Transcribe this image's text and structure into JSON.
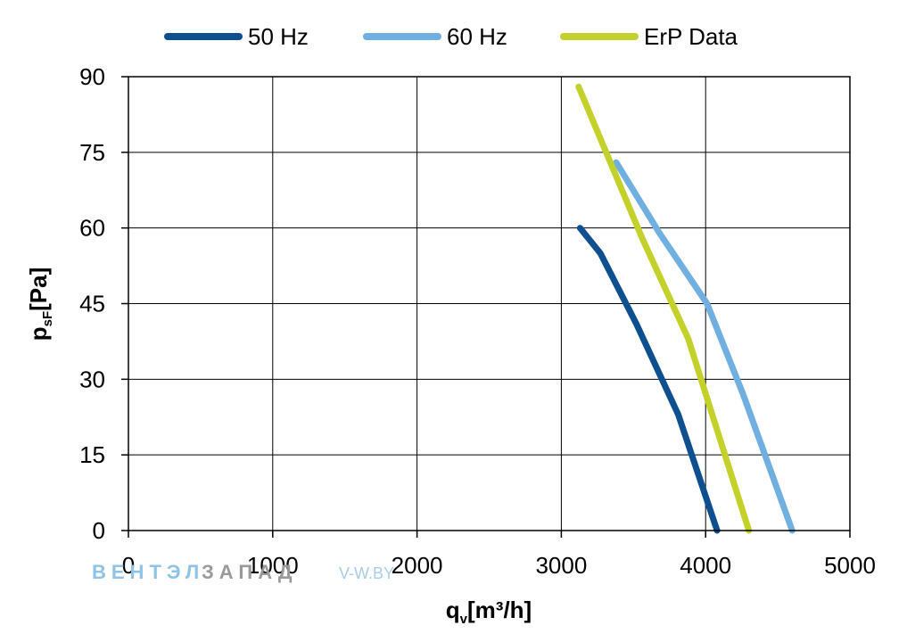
{
  "chart_data": {
    "type": "line",
    "xlim": [
      0,
      5000
    ],
    "ylim": [
      0,
      90
    ],
    "x_ticks": [
      "0",
      "1000",
      "2000",
      "3000",
      "4000",
      "5000"
    ],
    "y_ticks": [
      "0",
      "15",
      "30",
      "45",
      "60",
      "75",
      "90"
    ],
    "xlabel": {
      "main": "q",
      "sub": "v",
      "unit": "[m³/h]"
    },
    "ylabel": {
      "main": "p",
      "sub": "sF",
      "unit": "[Pa]"
    },
    "grid": true,
    "legend_position": "top",
    "series": [
      {
        "name": "50 Hz",
        "color": "#0d4f8f",
        "points": [
          [
            3130,
            60
          ],
          [
            3270,
            55
          ],
          [
            3520,
            41
          ],
          [
            3810,
            23
          ],
          [
            4080,
            0
          ]
        ]
      },
      {
        "name": "60 Hz",
        "color": "#6fb0e0",
        "points": [
          [
            3380,
            73
          ],
          [
            3680,
            59
          ],
          [
            4010,
            45
          ],
          [
            4260,
            27
          ],
          [
            4600,
            0
          ]
        ]
      },
      {
        "name": "ErP Data",
        "color": "#c3d12a",
        "points": [
          [
            3120,
            88
          ],
          [
            3560,
            58
          ],
          [
            3880,
            38
          ],
          [
            4300,
            0
          ]
        ]
      }
    ]
  },
  "watermark": {
    "part1": "ВЕНТЭЛ",
    "part2": "ЗАПАД",
    "part3": "V-W.BY"
  }
}
